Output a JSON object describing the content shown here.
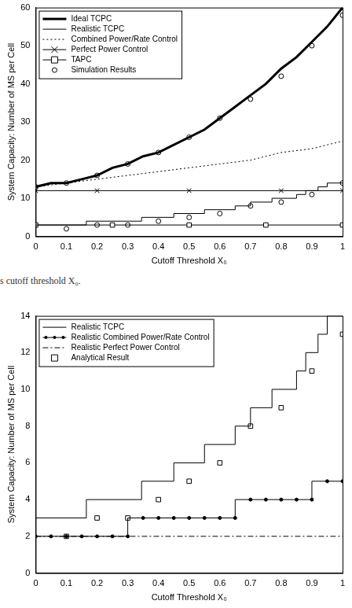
{
  "caption": "s cutoff threshold X₀.",
  "chart_data": [
    {
      "type": "line",
      "x_label": "Cutoff Threshold X₀",
      "y_label": "System Capacity: Number of MS per Cell",
      "xlim": [
        0,
        1
      ],
      "xticks": [
        0,
        0.1,
        0.2,
        0.3,
        0.4,
        0.5,
        0.6,
        0.7,
        0.8,
        0.9,
        1
      ],
      "ylim": [
        0,
        60
      ],
      "yticks": [
        0,
        10,
        20,
        30,
        40,
        50,
        60
      ],
      "grid": false,
      "legend": "top-left",
      "series": [
        {
          "name": "Ideal TCPC",
          "color": "#000000",
          "line_style": "thick",
          "marker": "none",
          "x": [
            0,
            0.05,
            0.1,
            0.15,
            0.2,
            0.25,
            0.3,
            0.35,
            0.4,
            0.45,
            0.5,
            0.55,
            0.6,
            0.65,
            0.7,
            0.75,
            0.8,
            0.85,
            0.9,
            0.95,
            1
          ],
          "values": [
            13,
            14,
            14,
            15,
            16,
            18,
            19,
            21,
            22,
            24,
            26,
            28,
            31,
            34,
            37,
            40,
            44,
            47,
            51,
            55,
            60
          ]
        },
        {
          "name": "Realistic TCPC",
          "color": "#000000",
          "line_style": "stepped",
          "marker": "none",
          "x": [
            0,
            0.165,
            0.345,
            0.45,
            0.55,
            0.65,
            0.7,
            0.77,
            0.85,
            0.88,
            0.92,
            0.95,
            0.99,
            1
          ],
          "values": [
            2,
            3,
            4,
            5,
            6,
            7,
            8,
            9,
            10,
            11,
            12,
            13,
            14,
            14
          ]
        },
        {
          "name": "Combined Power/Rate Control",
          "color": "#000000",
          "line_style": "dotted",
          "marker": "none",
          "x": [
            0,
            0.1,
            0.2,
            0.3,
            0.4,
            0.5,
            0.6,
            0.7,
            0.8,
            0.9,
            1
          ],
          "values": [
            13,
            14,
            15,
            16,
            17,
            18,
            19,
            20,
            22,
            23,
            25
          ]
        },
        {
          "name": "Perfect Power Control",
          "color": "#000000",
          "line_style": "solid",
          "marker": "x",
          "x": [
            0,
            0.2,
            0.5,
            0.8,
            1
          ],
          "values": [
            12,
            12,
            12,
            12,
            12
          ]
        },
        {
          "name": "TAPC",
          "color": "#000000",
          "line_style": "solid",
          "marker": "square",
          "x": [
            0,
            0.25,
            0.5,
            0.75,
            1
          ],
          "values": [
            3,
            3,
            3,
            3,
            3
          ]
        },
        {
          "name": "Simulation Results",
          "color": "#000000",
          "type": "scatter",
          "line_style": "none",
          "marker": "circle",
          "x": [
            0,
            0.1,
            0.2,
            0.3,
            0.4,
            0.5,
            0.6,
            0.7,
            0.8,
            0.9,
            1,
            0.1,
            0.2,
            0.3,
            0.4,
            0.5,
            0.6,
            0.7,
            0.8,
            0.9,
            1
          ],
          "values": [
            13,
            14,
            16,
            19,
            22,
            26,
            31,
            36,
            42,
            50,
            58,
            2,
            3,
            3,
            4,
            5,
            6,
            8,
            9,
            11,
            14
          ]
        }
      ]
    },
    {
      "type": "line",
      "x_label": "Cutoff Threshold X₀",
      "y_label": "System Capacity: Number of MS per Cell",
      "xlim": [
        0,
        1
      ],
      "xticks": [
        0,
        0.1,
        0.2,
        0.3,
        0.4,
        0.5,
        0.6,
        0.7,
        0.8,
        0.9,
        1
      ],
      "ylim": [
        0,
        14
      ],
      "yticks": [
        0,
        2,
        4,
        6,
        8,
        10,
        12,
        14
      ],
      "grid": false,
      "legend": "top-left",
      "series": [
        {
          "name": "Realistic TCPC",
          "color": "#000000",
          "line_style": "stepped",
          "marker": "none",
          "x": [
            0,
            0.165,
            0.345,
            0.45,
            0.55,
            0.65,
            0.7,
            0.77,
            0.85,
            0.88,
            0.92,
            0.95,
            0.99,
            1
          ],
          "values": [
            2,
            3,
            4,
            5,
            6,
            7,
            8,
            9,
            10,
            11,
            12,
            13,
            14,
            14
          ]
        },
        {
          "name": "Realistic Combined Power/Rate Control",
          "color": "#000000",
          "line_style": "stepped",
          "marker": "dot",
          "x": [
            0,
            0.05,
            0.1,
            0.15,
            0.2,
            0.25,
            0.3,
            0.35,
            0.4,
            0.45,
            0.5,
            0.55,
            0.6,
            0.65,
            0.7,
            0.75,
            0.8,
            0.85,
            0.9,
            0.95,
            1
          ],
          "values": [
            2,
            2,
            2,
            2,
            2,
            2,
            2,
            3,
            3,
            3,
            3,
            3,
            3,
            3,
            4,
            4,
            4,
            4,
            4,
            5,
            5
          ]
        },
        {
          "name": "Realistic Perfect Power Control",
          "color": "#000000",
          "line_style": "dash-dot",
          "marker": "none",
          "x": [
            0,
            1
          ],
          "values": [
            2,
            2
          ]
        },
        {
          "name": "Analytical Result",
          "color": "#000000",
          "type": "scatter",
          "line_style": "none",
          "marker": "square",
          "x": [
            0.1,
            0.2,
            0.3,
            0.4,
            0.5,
            0.6,
            0.7,
            0.8,
            0.9,
            1
          ],
          "values": [
            2,
            3,
            3,
            4,
            5,
            6,
            8,
            9,
            11,
            13
          ]
        }
      ]
    }
  ]
}
